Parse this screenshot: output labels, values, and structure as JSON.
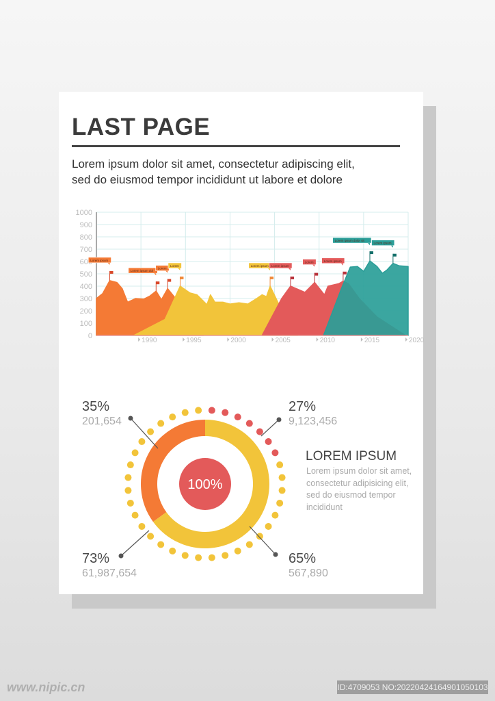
{
  "header": {
    "title": "LAST PAGE",
    "intro_line1": "Lorem ipsum dolor sit amet, consectetur adipiscing elit,",
    "intro_line2": "sed do eiusmod tempor incididunt ut labore et dolore"
  },
  "colors": {
    "orange": "#F47A35",
    "yellow": "#F2C43A",
    "red": "#E35A5A",
    "teal": "#2A9E98",
    "grid": "#d4ecec",
    "axis": "#bbbbbb"
  },
  "chart_data": [
    {
      "type": "area",
      "xlim": [
        1985,
        2020
      ],
      "ylim": [
        0,
        1000
      ],
      "yticks": [
        "0",
        "100",
        "200",
        "300",
        "400",
        "500",
        "600",
        "700",
        "800",
        "900",
        "1000"
      ],
      "xticks": [
        "1990",
        "1995",
        "2000",
        "2005",
        "2010",
        "2015",
        "2020"
      ],
      "grid": true,
      "series": [
        {
          "color": "orange",
          "points": [
            [
              1985,
              300
            ],
            [
              1985.7,
              340
            ],
            [
              1986.5,
              445
            ],
            [
              1987.3,
              430
            ],
            [
              1987.9,
              380
            ],
            [
              1988.5,
              270
            ],
            [
              1989.4,
              300
            ],
            [
              1990.3,
              295
            ],
            [
              1991,
              320
            ],
            [
              1991.7,
              360
            ],
            [
              1992.3,
              290
            ],
            [
              1993,
              380
            ],
            [
              1994,
              290
            ],
            [
              1995,
              200
            ],
            [
              1997,
              0
            ]
          ]
        },
        {
          "color": "yellow",
          "points": [
            [
              1989.2,
              0
            ],
            [
              1992.7,
              130
            ],
            [
              1994.4,
              400
            ],
            [
              1995.5,
              345
            ],
            [
              1996.3,
              330
            ],
            [
              1997,
              280
            ],
            [
              1997.4,
              250
            ],
            [
              1997.8,
              330
            ],
            [
              1998.3,
              270
            ],
            [
              1999.2,
              270
            ],
            [
              2000,
              255
            ],
            [
              2001,
              265
            ],
            [
              2002,
              255
            ],
            [
              2003,
              300
            ],
            [
              2003.6,
              330
            ],
            [
              2004.1,
              315
            ],
            [
              2004.5,
              400
            ],
            [
              2005.5,
              250
            ],
            [
              2007.6,
              0
            ]
          ]
        },
        {
          "color": "red",
          "points": [
            [
              2003.6,
              0
            ],
            [
              2005.8,
              300
            ],
            [
              2006.8,
              400
            ],
            [
              2008.4,
              350
            ],
            [
              2009.5,
              430
            ],
            [
              2010.6,
              330
            ],
            [
              2011,
              400
            ],
            [
              2012.2,
              420
            ],
            [
              2012.7,
              440
            ],
            [
              2013.3,
              420
            ],
            [
              2014.5,
              300
            ],
            [
              2016.5,
              150
            ],
            [
              2019.7,
              0
            ]
          ]
        },
        {
          "color": "teal",
          "points": [
            [
              2010.5,
              0
            ],
            [
              2012.5,
              380
            ],
            [
              2013.5,
              555
            ],
            [
              2014.3,
              560
            ],
            [
              2015,
              520
            ],
            [
              2015.7,
              605
            ],
            [
              2016.5,
              560
            ],
            [
              2017.1,
              505
            ],
            [
              2017.6,
              530
            ],
            [
              2018.3,
              585
            ],
            [
              2019,
              565
            ],
            [
              2020,
              560
            ],
            [
              2020,
              0
            ]
          ]
        }
      ],
      "annotations": [
        {
          "year": 1986.5,
          "value": 445,
          "label": "Lorem ipsum",
          "series": "orange"
        },
        {
          "year": 1991.7,
          "value": 360,
          "label": "Lorem ipsum dol",
          "series": "orange"
        },
        {
          "year": 1993,
          "value": 380,
          "label": "Lorem",
          "series": "orange"
        },
        {
          "year": 1994.4,
          "value": 400,
          "label": "Lorem",
          "series": "yellow"
        },
        {
          "year": 2004.5,
          "value": 400,
          "label": "Lorem ipsum",
          "series": "yellow"
        },
        {
          "year": 2006.8,
          "value": 400,
          "label": "Lorem ipsum",
          "series": "red"
        },
        {
          "year": 2009.5,
          "value": 430,
          "label": "Lorem",
          "series": "red"
        },
        {
          "year": 2012.7,
          "value": 440,
          "label": "Lorem ipsum",
          "series": "red"
        },
        {
          "year": 2015.7,
          "value": 605,
          "label": "Lorem ipsum dolor sit",
          "series": "teal"
        },
        {
          "year": 2018.3,
          "value": 585,
          "label": "Lorem ipsum",
          "series": "teal"
        }
      ]
    },
    {
      "type": "pie",
      "center_label": "100%",
      "slices": [
        {
          "value": 35,
          "color": "orange"
        },
        {
          "value": 65,
          "color": "yellow"
        }
      ],
      "dot_ring": {
        "count": 36,
        "red_count": 7
      }
    }
  ],
  "stats": [
    {
      "pct": "35%",
      "value": "201,654"
    },
    {
      "pct": "27%",
      "value": "9,123,456"
    },
    {
      "pct": "73%",
      "value": "61,987,654"
    },
    {
      "pct": "65%",
      "value": "567,890"
    }
  ],
  "info": {
    "heading": "LOREM IPSUM",
    "body": "Lorem ipsum dolor sit amet, consectetur adipisicing elit, sed do eiusmod tempor incididunt"
  },
  "watermark": {
    "site": "昵享网 www.nipic.cn",
    "site_url": "www.nipic.cn",
    "id": "ID:4709053 NO:20220424164901050103"
  }
}
